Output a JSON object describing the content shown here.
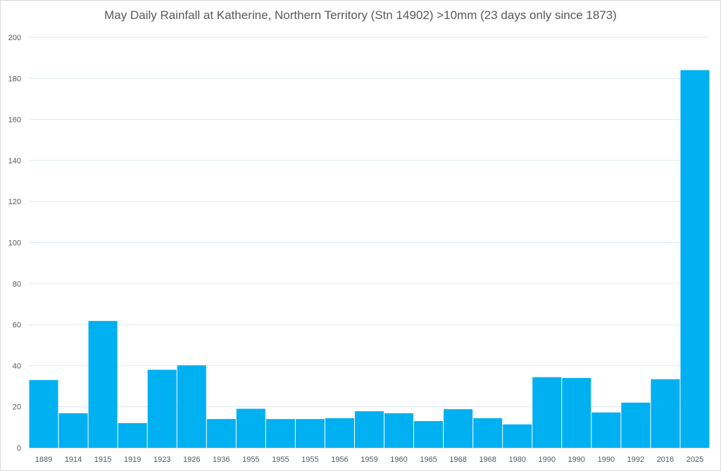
{
  "chart_data": {
    "type": "bar",
    "title": "May Daily Rainfall at Katherine, Northern Territory (Stn 14902) >10mm (23 days only since 1873)",
    "xlabel": "",
    "ylabel": "",
    "ylim": [
      0,
      200
    ],
    "yticks": [
      0,
      20,
      40,
      60,
      80,
      100,
      120,
      140,
      160,
      180,
      200
    ],
    "grid": true,
    "legend": "none",
    "bar_color": "#00B0F0",
    "categories": [
      "1889",
      "1914",
      "1915",
      "1919",
      "1923",
      "1926",
      "1936",
      "1955",
      "1955",
      "1955",
      "1956",
      "1959",
      "1960",
      "1965",
      "1968",
      "1968",
      "1980",
      "1990",
      "1990",
      "1990",
      "1992",
      "2016",
      "2025"
    ],
    "values": [
      33,
      16.8,
      61.8,
      12,
      38,
      40.2,
      14,
      19,
      14,
      14,
      14.4,
      17.8,
      16.8,
      13,
      18.8,
      14.4,
      11.4,
      34.4,
      34,
      17.2,
      22,
      33.4,
      184
    ]
  }
}
